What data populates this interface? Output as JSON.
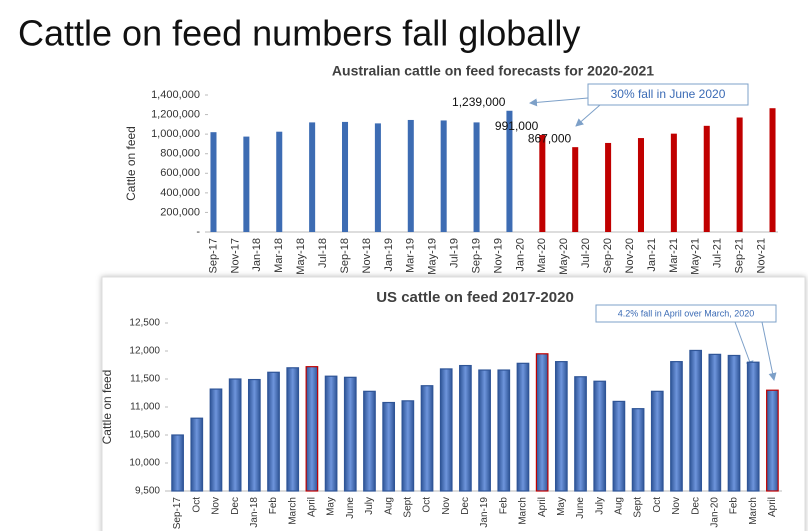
{
  "title": "Cattle on feed numbers fall globally",
  "chart_data": [
    {
      "type": "bar",
      "title": "Australian cattle on feed forecasts for 2020-2021",
      "ylabel": "Cattle on feed",
      "annotation": "30% fall in June 2020",
      "categories": [
        "Sep-17",
        null,
        "Nov-17",
        null,
        "Jan-18",
        null,
        "Mar-18",
        null,
        "May-18",
        null,
        "Jul-18",
        null,
        "Sep-18",
        null,
        "Nov-18",
        null,
        "Jan-19",
        null,
        "Mar-19",
        null,
        "May-19",
        null,
        "Jul-19",
        null,
        "Sep-19",
        null,
        "Nov-19",
        null,
        "Jan-20",
        null,
        "Mar-20",
        null,
        "May-20",
        null,
        "Jul-20",
        null,
        "Sep-20",
        null,
        "Nov-20",
        null,
        "Jan-21",
        null,
        "Mar-21",
        null,
        "May-21",
        null,
        "Jul-21",
        null,
        "Sep-21",
        null,
        "Nov-21",
        null
      ],
      "values": [
        1020000,
        null,
        null,
        975000,
        null,
        null,
        1025000,
        null,
        null,
        1120000,
        null,
        null,
        1125000,
        null,
        null,
        1110000,
        null,
        null,
        1145000,
        null,
        null,
        1140000,
        null,
        null,
        1120000,
        null,
        null,
        1239000,
        null,
        null,
        991000,
        null,
        null,
        867000,
        null,
        null,
        910000,
        null,
        null,
        960000,
        null,
        null,
        1005000,
        null,
        null,
        1085000,
        null,
        null,
        1170000,
        null,
        null,
        1265000
      ],
      "value_labels": [
        null,
        null,
        null,
        null,
        null,
        null,
        null,
        null,
        null,
        null,
        null,
        null,
        null,
        null,
        null,
        null,
        null,
        null,
        null,
        null,
        null,
        null,
        null,
        null,
        null,
        null,
        null,
        "1,239,000",
        null,
        null,
        "991,000",
        null,
        null,
        "867,000",
        null,
        null,
        null,
        null,
        null,
        null,
        null,
        null,
        null,
        null,
        null,
        null,
        null,
        null,
        null,
        null,
        null,
        null
      ],
      "colors": [
        "#3d6cb3",
        null,
        null,
        "#3d6cb3",
        null,
        null,
        "#3d6cb3",
        null,
        null,
        "#3d6cb3",
        null,
        null,
        "#3d6cb3",
        null,
        null,
        "#3d6cb3",
        null,
        null,
        "#3d6cb3",
        null,
        null,
        "#3d6cb3",
        null,
        null,
        "#3d6cb3",
        null,
        null,
        "#3d6cb3",
        null,
        null,
        "#c00000",
        null,
        null,
        "#c00000",
        null,
        null,
        "#c00000",
        null,
        null,
        "#c00000",
        null,
        null,
        "#c00000",
        null,
        null,
        "#c00000",
        null,
        null,
        "#c00000",
        null,
        null,
        "#c00000"
      ],
      "ylim": [
        0,
        1400000
      ],
      "yticks": [
        {
          "value": 0,
          "label": "-"
        },
        {
          "value": 200000,
          "label": "200,000"
        },
        {
          "value": 400000,
          "label": "400,000"
        },
        {
          "value": 600000,
          "label": "600,000"
        },
        {
          "value": 800000,
          "label": "800,000"
        },
        {
          "value": 1000000,
          "label": "1,000,000"
        },
        {
          "value": 1200000,
          "label": "1,200,000"
        },
        {
          "value": 1400000,
          "label": "1,400,000"
        }
      ],
      "grid": false
    },
    {
      "type": "bar",
      "title": "US cattle on feed 2017-2020",
      "ylabel": "Cattle on feed",
      "annotation": "4.2% fall in April over March, 2020",
      "categories": [
        "Sep-17",
        "Oct",
        "Nov",
        "Dec",
        "Jan-18",
        "Feb",
        "March",
        "April",
        "May",
        "June",
        "July",
        "Aug",
        "Sept",
        "Oct",
        "Nov",
        "Dec",
        "Jan-19",
        "Feb",
        "March",
        "April",
        "May",
        "June",
        "July",
        "Aug",
        "Sept",
        "Oct",
        "Nov",
        "Dec",
        "Jan-20",
        "Feb",
        "March",
        "April"
      ],
      "values": [
        10500,
        10800,
        11320,
        11500,
        11490,
        11620,
        11700,
        11720,
        11550,
        11530,
        11280,
        11080,
        11110,
        11380,
        11680,
        11740,
        11660,
        11660,
        11780,
        11950,
        11810,
        11540,
        11460,
        11100,
        10970,
        11280,
        11810,
        12010,
        11940,
        11920,
        11800,
        11300
      ],
      "color": "#4472c4",
      "edgecolors": [
        "#2f5597",
        "#2f5597",
        "#2f5597",
        "#2f5597",
        "#2f5597",
        "#2f5597",
        "#2f5597",
        "#c00000",
        "#2f5597",
        "#2f5597",
        "#2f5597",
        "#2f5597",
        "#2f5597",
        "#2f5597",
        "#2f5597",
        "#2f5597",
        "#2f5597",
        "#2f5597",
        "#2f5597",
        "#c00000",
        "#2f5597",
        "#2f5597",
        "#2f5597",
        "#2f5597",
        "#2f5597",
        "#2f5597",
        "#2f5597",
        "#2f5597",
        "#2f5597",
        "#2f5597",
        "#2f5597",
        "#c00000"
      ],
      "ylim": [
        9500,
        12500
      ],
      "yticks": [
        {
          "value": 9500,
          "label": "9,500"
        },
        {
          "value": 10000,
          "label": "10,000"
        },
        {
          "value": 10500,
          "label": "10,500"
        },
        {
          "value": 11000,
          "label": "11,000"
        },
        {
          "value": 11500,
          "label": "11,500"
        },
        {
          "value": 12000,
          "label": "12,000"
        },
        {
          "value": 12500,
          "label": "12,500"
        }
      ],
      "grid": false
    }
  ]
}
